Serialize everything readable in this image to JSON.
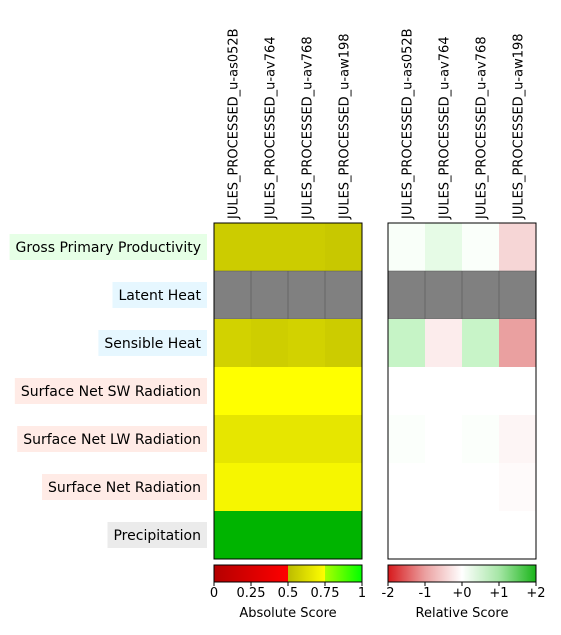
{
  "chart_data": {
    "type": "heatmap",
    "columns": [
      "JULES_PROCESSED_u-as052B",
      "JULES_PROCESSED_u-av764",
      "JULES_PROCESSED_u-av768",
      "JULES_PROCESSED_u-aw198"
    ],
    "rows": [
      {
        "label": "Gross Primary Productivity",
        "label_bg": "#e6ffe6"
      },
      {
        "label": "Latent Heat",
        "label_bg": "#e6f7ff"
      },
      {
        "label": "Sensible Heat",
        "label_bg": "#e6f7ff"
      },
      {
        "label": "Surface Net SW Radiation",
        "label_bg": "#ffebe6"
      },
      {
        "label": "Surface Net LW Radiation",
        "label_bg": "#ffebe6"
      },
      {
        "label": "Surface Net Radiation",
        "label_bg": "#ffebe6"
      },
      {
        "label": "Precipitation",
        "label_bg": "#ebebeb"
      }
    ],
    "absolute_scores": [
      [
        0.68,
        0.68,
        0.68,
        0.67
      ],
      [
        null,
        null,
        null,
        null
      ],
      [
        0.67,
        0.66,
        0.67,
        0.64
      ],
      [
        0.99,
        0.99,
        0.99,
        0.99
      ],
      [
        0.9,
        0.9,
        0.9,
        0.9
      ],
      [
        0.95,
        0.95,
        0.95,
        0.95
      ],
      [
        0.85,
        0.85,
        0.85,
        0.85
      ]
    ],
    "absolute_colors": [
      [
        "#cccc00",
        "#cccc00",
        "#cccc00",
        "#c8c800"
      ],
      [
        "#808080",
        "#808080",
        "#808080",
        "#808080"
      ],
      [
        "#d2d200",
        "#cece00",
        "#d2d200",
        "#cccc00"
      ],
      [
        "#ffff00",
        "#ffff00",
        "#ffff00",
        "#ffff00"
      ],
      [
        "#e6e600",
        "#e6e600",
        "#e6e600",
        "#e6e600"
      ],
      [
        "#f6f600",
        "#f6f600",
        "#f6f600",
        "#f6f600"
      ],
      [
        "#00b400",
        "#00b400",
        "#00b400",
        "#00b400"
      ]
    ],
    "relative_scores": [
      [
        0.05,
        0.15,
        0.03,
        -0.25
      ],
      [
        null,
        null,
        null,
        null
      ],
      [
        0.35,
        -0.1,
        0.35,
        -0.6
      ],
      [
        0.0,
        0.0,
        0.0,
        0.0
      ],
      [
        0.02,
        0.0,
        0.02,
        -0.05
      ],
      [
        0.0,
        0.0,
        0.0,
        -0.02
      ],
      [
        0.0,
        0.0,
        0.0,
        0.0
      ]
    ],
    "relative_colors": [
      [
        "#f9fff9",
        "#e6fbe6",
        "#fafffa",
        "#f6d6d6"
      ],
      [
        "#808080",
        "#808080",
        "#808080",
        "#808080"
      ],
      [
        "#c6f4c6",
        "#fcecec",
        "#c8f4c8",
        "#eaa0a0"
      ],
      [
        "#ffffff",
        "#ffffff",
        "#ffffff",
        "#ffffff"
      ],
      [
        "#fbfffb",
        "#ffffff",
        "#fbfffb",
        "#fdf5f5"
      ],
      [
        "#ffffff",
        "#ffffff",
        "#ffffff",
        "#fefafa"
      ],
      [
        "#ffffff",
        "#ffffff",
        "#ffffff",
        "#ffffff"
      ]
    ],
    "absolute_colorbar": {
      "label": "Absolute Score",
      "range": [
        0,
        1
      ],
      "ticks": [
        0,
        0.25,
        0.5,
        0.75,
        1
      ],
      "tick_labels": [
        "0",
        "0.25",
        "0.5",
        "0.75",
        "1"
      ],
      "stops": [
        {
          "at": 0.0,
          "color": "#b40000"
        },
        {
          "at": 0.5,
          "color": "#ff0000"
        },
        {
          "at": 0.5,
          "color": "#bcbc00"
        },
        {
          "at": 0.75,
          "color": "#ffff00"
        },
        {
          "at": 0.75,
          "color": "#aaff00"
        },
        {
          "at": 1.0,
          "color": "#00ff00"
        }
      ]
    },
    "relative_colorbar": {
      "label": "Relative Score",
      "range": [
        -2,
        2
      ],
      "ticks": [
        -2,
        -1,
        0,
        1,
        2
      ],
      "tick_labels": [
        "-2",
        "-1",
        "+0",
        "+1",
        "+2"
      ],
      "stops": [
        {
          "at": 0.0,
          "color": "#d7191c"
        },
        {
          "at": 0.25,
          "color": "#eba0a0"
        },
        {
          "at": 0.5,
          "color": "#ffffff"
        },
        {
          "at": 0.75,
          "color": "#a6e6a6"
        },
        {
          "at": 1.0,
          "color": "#1ab51a"
        }
      ]
    }
  }
}
